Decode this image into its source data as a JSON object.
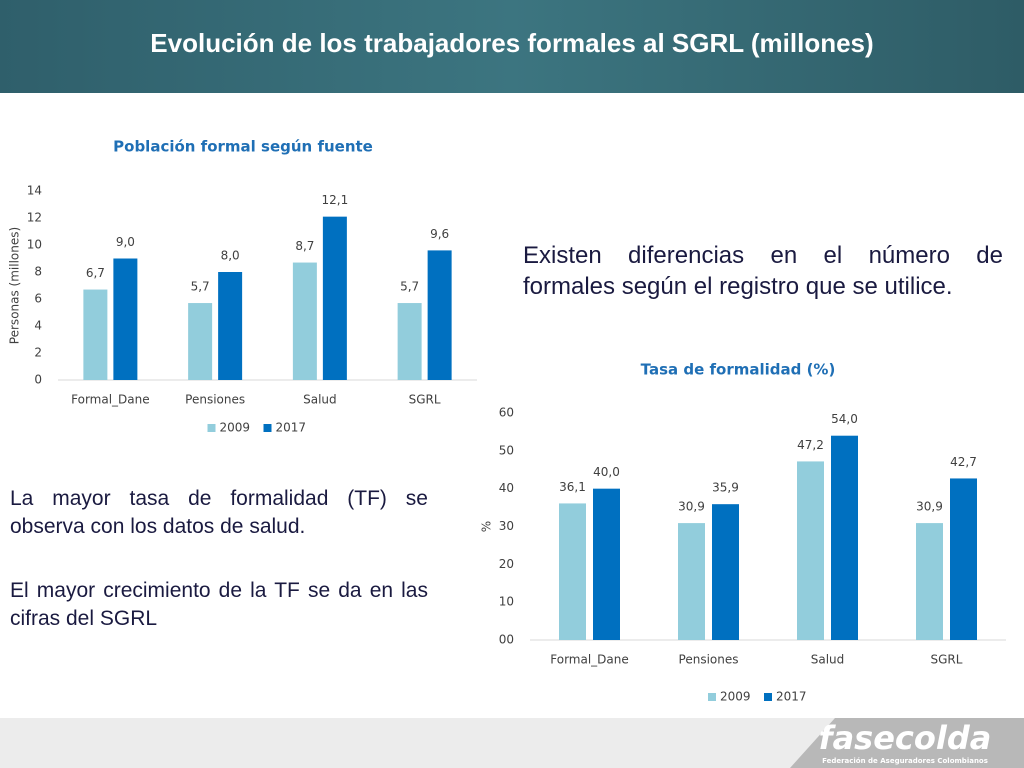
{
  "header": {
    "title": "Evolución de los trabajadores formales al SGRL (millones)"
  },
  "chart_data": [
    {
      "type": "bar",
      "title": "Población formal  según fuente",
      "y_label": "Personas (millones)",
      "categories": [
        "Formal_Dane",
        "Pensiones",
        "Salud",
        "SGRL"
      ],
      "series": [
        {
          "name": "2009",
          "color": "#92cddc",
          "values": [
            6.7,
            5.7,
            8.7,
            5.7
          ],
          "value_labels": [
            "6,7",
            "5,7",
            "8,7",
            "5,7"
          ]
        },
        {
          "name": "2017",
          "color": "#0070c0",
          "values": [
            9.0,
            8.0,
            12.1,
            9.6
          ],
          "value_labels": [
            "9,0",
            "8,0",
            "12,1",
            "9,6"
          ]
        }
      ],
      "ylim": [
        0,
        14
      ],
      "yticks": [
        0,
        2,
        4,
        6,
        8,
        10,
        12,
        14
      ],
      "legend": "bottom"
    },
    {
      "type": "bar",
      "title": "Tasa de formalidad (%)",
      "y_label": "%",
      "categories": [
        "Formal_Dane",
        "Pensiones",
        "Salud",
        "SGRL"
      ],
      "series": [
        {
          "name": "2009",
          "color": "#92cddc",
          "values": [
            36.1,
            30.9,
            47.2,
            30.9
          ],
          "value_labels": [
            "36,1",
            "30,9",
            "47,2",
            "30,9"
          ]
        },
        {
          "name": "2017",
          "color": "#0070c0",
          "values": [
            40.0,
            35.9,
            54.0,
            42.7
          ],
          "value_labels": [
            "40,0",
            "35,9",
            "54,0",
            "42,7"
          ]
        }
      ],
      "ylim": [
        0,
        60
      ],
      "yticks": [
        {
          "value": 0,
          "label": "00"
        },
        10,
        20,
        30,
        40,
        50,
        60
      ],
      "legend": "bottom"
    }
  ],
  "texts": {
    "right": "Existen diferencias en el número de formales según el registro que se utilice.",
    "left1": "La mayor tasa de formalidad (TF) se observa con los datos de salud.",
    "left2": "El mayor crecimiento de la TF se da en las cifras del SGRL"
  },
  "logo": {
    "name": "fasecolda",
    "subtitle": "Federación de Aseguradores Colombianos"
  }
}
